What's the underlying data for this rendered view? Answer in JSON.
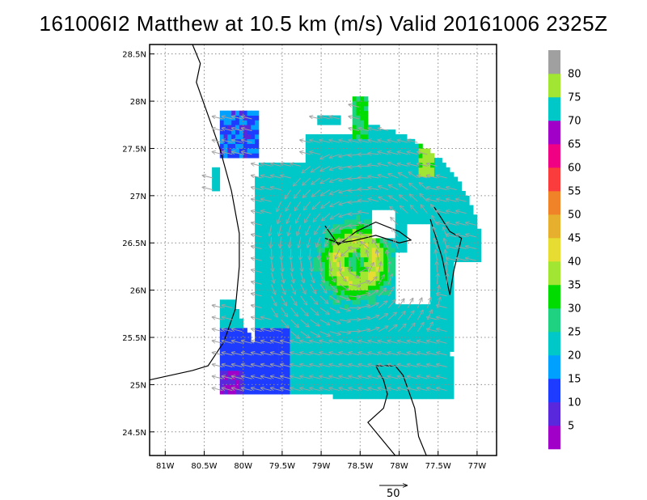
{
  "chart_data": {
    "type": "heatmap",
    "title": "161006I2 Matthew at 10.5 km (m/s) Valid 20161006 2325Z",
    "xlim": [
      -81.2,
      -76.75
    ],
    "ylim": [
      24.25,
      28.6
    ],
    "grid": true,
    "x_ticks": [
      {
        "value": -81.0,
        "label": "81W"
      },
      {
        "value": -80.5,
        "label": "80.5W"
      },
      {
        "value": -80.0,
        "label": "80W"
      },
      {
        "value": -79.5,
        "label": "79.5W"
      },
      {
        "value": -79.0,
        "label": "79W"
      },
      {
        "value": -78.5,
        "label": "78.5W"
      },
      {
        "value": -78.0,
        "label": "78W"
      },
      {
        "value": -77.5,
        "label": "77.5W"
      },
      {
        "value": -77.0,
        "label": "77W"
      }
    ],
    "y_ticks": [
      {
        "value": 24.5,
        "label": "24.5N"
      },
      {
        "value": 25.0,
        "label": "25N"
      },
      {
        "value": 25.5,
        "label": "25.5N"
      },
      {
        "value": 26.0,
        "label": "26N"
      },
      {
        "value": 26.5,
        "label": "26.5N"
      },
      {
        "value": 27.0,
        "label": "27N"
      },
      {
        "value": 27.5,
        "label": "27.5N"
      },
      {
        "value": 28.0,
        "label": "28N"
      },
      {
        "value": 28.5,
        "label": "28.5N"
      }
    ],
    "storm_center": {
      "lon": -78.55,
      "lat": 26.3
    },
    "colorbar": {
      "labels": [
        "5",
        "10",
        "15",
        "20",
        "25",
        "30",
        "35",
        "40",
        "45",
        "50",
        "55",
        "60",
        "65",
        "70",
        "75",
        "80"
      ],
      "colors": [
        "#a000c8",
        "#5a28dc",
        "#1e3cff",
        "#00a0ff",
        "#00c8c8",
        "#1ed282",
        "#00dc00",
        "#a0e632",
        "#e6dc32",
        "#e6af2d",
        "#f08228",
        "#fa3c3c",
        "#f00082",
        "#a000c8",
        "#00c8c8",
        "#a0e632",
        "#a0a0a0"
      ]
    },
    "vector_scale_label": "50",
    "coastlines": [
      [
        [
          -80.65,
          28.6
        ],
        [
          -80.55,
          28.4
        ],
        [
          -80.6,
          28.2
        ],
        [
          -80.45,
          27.85
        ],
        [
          -80.3,
          27.5
        ],
        [
          -80.15,
          27.05
        ],
        [
          -80.05,
          26.6
        ],
        [
          -80.05,
          26.25
        ],
        [
          -80.1,
          25.8
        ],
        [
          -80.25,
          25.45
        ],
        [
          -80.45,
          25.2
        ],
        [
          -80.65,
          25.15
        ],
        [
          -81.2,
          25.05
        ]
      ],
      [
        [
          -78.95,
          26.68
        ],
        [
          -78.78,
          26.48
        ],
        [
          -78.55,
          26.62
        ],
        [
          -78.3,
          26.72
        ],
        [
          -78.0,
          26.62
        ],
        [
          -77.85,
          26.53
        ],
        [
          -78.0,
          26.5
        ],
        [
          -78.3,
          26.58
        ],
        [
          -78.6,
          26.52
        ],
        [
          -78.78,
          26.5
        ],
        [
          -78.95,
          26.55
        ]
      ],
      [
        [
          -77.55,
          26.88
        ],
        [
          -77.35,
          26.62
        ],
        [
          -77.2,
          26.55
        ],
        [
          -77.3,
          26.2
        ],
        [
          -77.35,
          25.95
        ],
        [
          -77.45,
          26.35
        ],
        [
          -77.6,
          26.75
        ]
      ],
      [
        [
          -78.3,
          25.2
        ],
        [
          -78.05,
          25.2
        ],
        [
          -77.95,
          25.1
        ],
        [
          -77.8,
          24.75
        ],
        [
          -77.75,
          24.45
        ],
        [
          -77.65,
          24.25
        ]
      ],
      [
        [
          -78.3,
          25.2
        ],
        [
          -78.2,
          25.05
        ],
        [
          -78.15,
          24.9
        ],
        [
          -78.2,
          24.75
        ],
        [
          -78.4,
          24.6
        ],
        [
          -78.25,
          24.45
        ],
        [
          -78.05,
          24.25
        ]
      ]
    ]
  }
}
